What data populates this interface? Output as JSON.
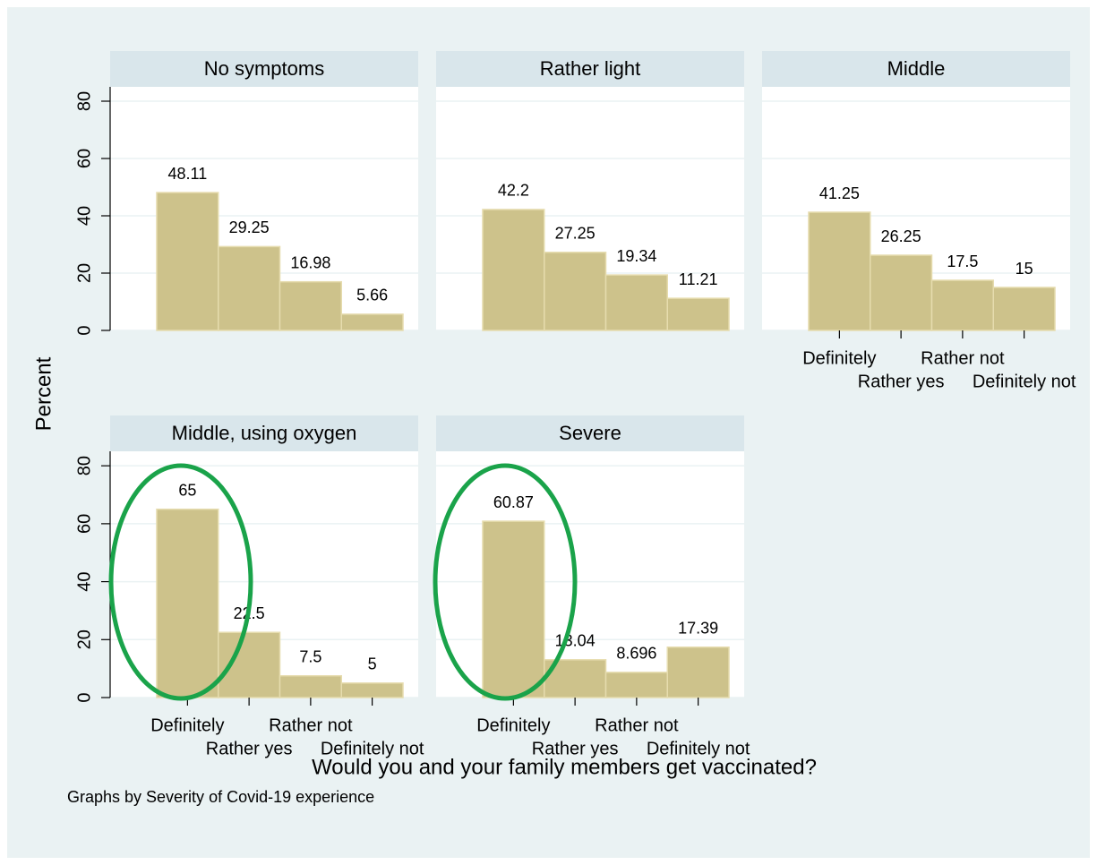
{
  "ylabel": "Percent",
  "xlabel": "Would you and your family members get vaccinated?",
  "note": "Graphs by Severity of Covid-19 experience",
  "chart_data": [
    {
      "type": "bar",
      "title": "No symptoms",
      "categories": [
        null,
        null,
        null,
        null
      ],
      "values": [
        48.11,
        29.25,
        16.98,
        5.66
      ],
      "color": "#cdc28b",
      "ylim": [
        0,
        85
      ],
      "yticks": [
        0,
        20,
        40,
        60,
        80
      ],
      "grid": true
    },
    {
      "type": "bar",
      "title": "Rather light",
      "categories": [
        null,
        null,
        null,
        null
      ],
      "values": [
        42.2,
        27.25,
        19.34,
        11.21
      ],
      "color": "#cdc28b",
      "ylim": [
        0,
        85
      ],
      "yticks": [
        0,
        20,
        40,
        60,
        80
      ],
      "grid": true
    },
    {
      "type": "bar",
      "title": "Middle",
      "categories": [
        "Definitely",
        "Rather yes",
        "Rather not",
        "Definitely not"
      ],
      "values": [
        41.25,
        26.25,
        17.5,
        15
      ],
      "color": "#cdc28b",
      "ylim": [
        0,
        85
      ],
      "yticks": [
        0,
        20,
        40,
        60,
        80
      ],
      "grid": true
    },
    {
      "type": "bar",
      "title": "Middle, using oxygen",
      "categories": [
        "Definitely",
        "Rather yes",
        "Rather not",
        "Definitely not"
      ],
      "values": [
        65,
        22.5,
        7.5,
        5
      ],
      "color": "#cdc28b",
      "ylim": [
        0,
        85
      ],
      "yticks": [
        0,
        20,
        40,
        60,
        80
      ],
      "grid": true
    },
    {
      "type": "bar",
      "title": "Severe",
      "categories": [
        "Definitely",
        "Rather yes",
        "Rather not",
        "Definitely not"
      ],
      "values": [
        60.87,
        13.04,
        8.696,
        17.39
      ],
      "color": "#cdc28b",
      "ylim": [
        0,
        85
      ],
      "yticks": [
        0,
        20,
        40,
        60,
        80
      ],
      "grid": true
    }
  ]
}
